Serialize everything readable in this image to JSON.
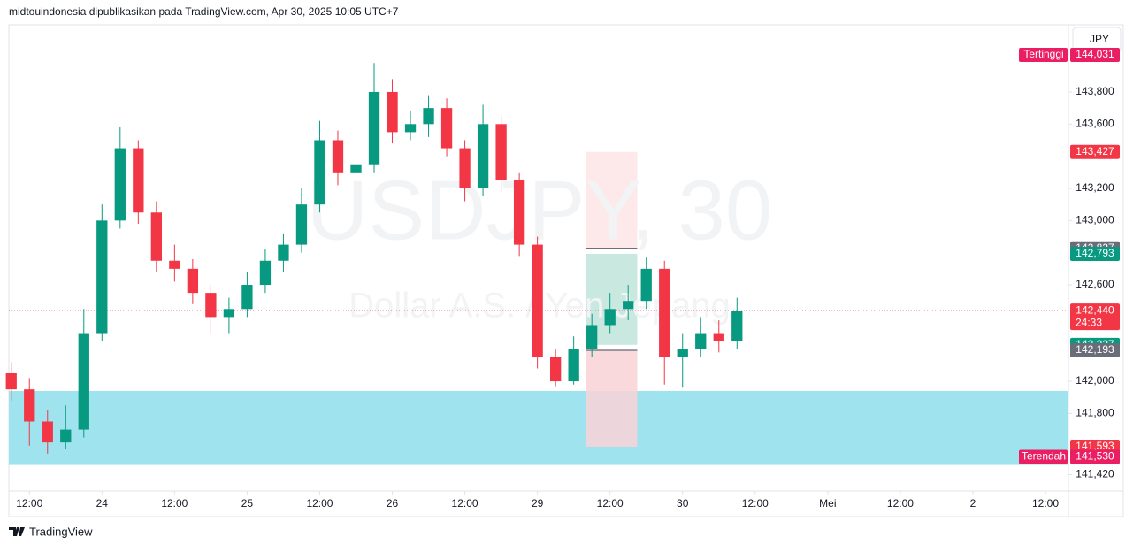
{
  "header": {
    "text": "midtouindonesia dipublikasikan pada TradingView.com, Apr 30, 2025 10:05 UTC+7"
  },
  "footer": {
    "brand": "TradingView"
  },
  "currency_button": "JPY",
  "chart_data": {
    "type": "candlestick",
    "watermark": {
      "title": "USDJPY, 30",
      "subtitle": "Dollar A.S. / Yen Jepang"
    },
    "up_color": "#089981",
    "down_color": "#f23645",
    "grid": false,
    "xlim": [
      8.6,
      183.8
    ],
    "xticks": [
      {
        "value": 12,
        "label": "12:00"
      },
      {
        "value": 24,
        "label": "24"
      },
      {
        "value": 36,
        "label": "12:00"
      },
      {
        "value": 48,
        "label": "25"
      },
      {
        "value": 60,
        "label": "12:00"
      },
      {
        "value": 72,
        "label": "26"
      },
      {
        "value": 84,
        "label": "12:00"
      },
      {
        "value": 96,
        "label": "29"
      },
      {
        "value": 108,
        "label": "12:00"
      },
      {
        "value": 120,
        "label": "30"
      },
      {
        "value": 132,
        "label": "12:00"
      },
      {
        "value": 144,
        "label": "Mei"
      },
      {
        "value": 156,
        "label": "12:00"
      },
      {
        "value": 168,
        "label": "2"
      },
      {
        "value": 180,
        "label": "12:00"
      }
    ],
    "ylim": [
      141.318,
      144.218
    ],
    "yticks": [
      {
        "value": 141.42,
        "label": "141,420"
      },
      {
        "value": 141.8,
        "label": "141,800"
      },
      {
        "value": 142.0,
        "label": "142,000"
      },
      {
        "value": 142.6,
        "label": "142,600"
      },
      {
        "value": 143.0,
        "label": "143,000"
      },
      {
        "value": 143.2,
        "label": "143,200"
      },
      {
        "value": 143.6,
        "label": "143,600"
      },
      {
        "value": 143.8,
        "label": "143,800"
      }
    ],
    "x": [
      9,
      12,
      15,
      18,
      21,
      24,
      27,
      30,
      33,
      36,
      39,
      42,
      45,
      48,
      51,
      54,
      57,
      60,
      63,
      66,
      69,
      72,
      75,
      78,
      81,
      84,
      87,
      90,
      93,
      96,
      99,
      102,
      105,
      108,
      111,
      114,
      117,
      120,
      123,
      126,
      129
    ],
    "open": [
      142.05,
      141.95,
      141.75,
      141.62,
      141.7,
      142.3,
      143.0,
      143.45,
      143.05,
      142.75,
      142.7,
      142.55,
      142.4,
      142.45,
      142.6,
      142.75,
      142.85,
      143.1,
      143.5,
      143.3,
      143.35,
      143.8,
      143.55,
      143.6,
      143.7,
      143.45,
      143.2,
      143.6,
      143.25,
      142.85,
      142.15,
      142.0,
      142.2,
      142.35,
      142.45,
      142.5,
      142.7,
      142.15,
      142.2,
      142.3,
      142.25
    ],
    "high": [
      142.12,
      142.02,
      141.82,
      141.85,
      142.45,
      143.1,
      143.58,
      143.5,
      143.12,
      142.85,
      142.76,
      142.6,
      142.52,
      142.68,
      142.82,
      142.92,
      143.2,
      143.62,
      143.56,
      143.45,
      143.98,
      143.88,
      143.68,
      143.78,
      143.76,
      143.5,
      143.72,
      143.65,
      143.3,
      142.9,
      142.2,
      142.28,
      142.42,
      142.55,
      142.6,
      142.77,
      142.75,
      142.3,
      142.4,
      142.38,
      142.52
    ],
    "low": [
      141.88,
      141.6,
      141.55,
      141.58,
      141.65,
      142.25,
      142.95,
      142.98,
      142.68,
      142.62,
      142.48,
      142.3,
      142.3,
      142.4,
      142.55,
      142.68,
      142.8,
      143.05,
      143.22,
      143.25,
      143.3,
      143.48,
      143.5,
      143.52,
      143.4,
      143.12,
      143.15,
      143.18,
      142.78,
      142.08,
      141.97,
      141.98,
      142.15,
      142.3,
      142.38,
      142.45,
      141.98,
      141.96,
      142.15,
      142.18,
      142.2
    ],
    "close": [
      141.95,
      141.75,
      141.62,
      141.7,
      142.3,
      143.0,
      143.45,
      143.05,
      142.75,
      142.7,
      142.55,
      142.4,
      142.45,
      142.6,
      142.75,
      142.85,
      143.1,
      143.5,
      143.3,
      143.35,
      143.8,
      143.55,
      143.6,
      143.7,
      143.45,
      143.2,
      143.6,
      143.25,
      142.85,
      142.15,
      142.0,
      142.2,
      142.35,
      142.45,
      142.5,
      142.7,
      142.15,
      142.2,
      142.3,
      142.25,
      142.44
    ],
    "last_price": 142.44,
    "zones": [
      {
        "x": [
          8.6,
          183.8
        ],
        "y": [
          141.48,
          141.94
        ],
        "color": "#9ee3ed"
      },
      {
        "x": [
          104,
          112.5
        ],
        "y": [
          142.827,
          143.427
        ],
        "color": "#fde4e6"
      },
      {
        "x": [
          104,
          112.5
        ],
        "y": [
          142.227,
          142.793
        ],
        "color": "#bfe5da"
      },
      {
        "x": [
          104,
          112.5
        ],
        "y": [
          141.593,
          142.193
        ],
        "color": "#f9d2d7"
      }
    ],
    "levels": [
      142.827,
      142.193
    ],
    "price_labels": [
      {
        "value": 144.031,
        "label": "144,031",
        "color": "#e91e63",
        "tag": "Tertinggi"
      },
      {
        "value": 143.427,
        "label": "143,427",
        "color": "#f23645"
      },
      {
        "value": 142.827,
        "label": "142,827",
        "color": "#6a6d78"
      },
      {
        "value": 142.793,
        "label": "142,793",
        "color": "#089981"
      },
      {
        "value": 142.44,
        "label": "142,440",
        "color": "#f23645",
        "sub": "24:33"
      },
      {
        "value": 142.227,
        "label": "142,227",
        "color": "#089981"
      },
      {
        "value": 142.193,
        "label": "142,193",
        "color": "#6a6d78"
      },
      {
        "value": 141.593,
        "label": "141,593",
        "color": "#f23645"
      },
      {
        "value": 141.53,
        "label": "141,530",
        "color": "#e91e63",
        "tag": "Terendah"
      }
    ]
  }
}
